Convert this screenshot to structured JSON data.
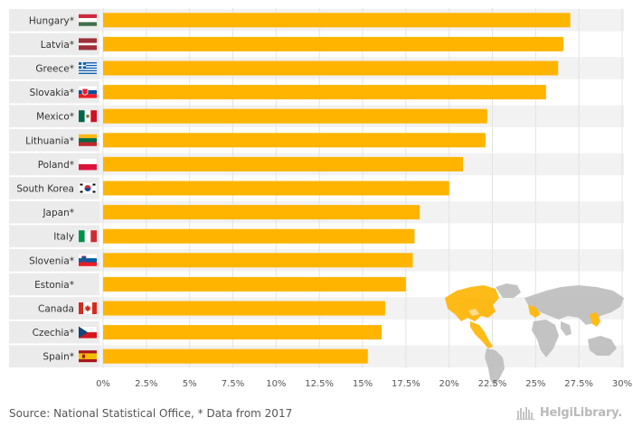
{
  "chart_data": {
    "type": "bar",
    "orientation": "horizontal",
    "categories": [
      "Hungary*",
      "Latvia*",
      "Greece*",
      "Slovakia*",
      "Mexico*",
      "Lithuania*",
      "Poland*",
      "South Korea",
      "Japan*",
      "Italy",
      "Slovenia*",
      "Estonia*",
      "Canada",
      "Czechia*",
      "Spain*"
    ],
    "values": [
      27.0,
      26.6,
      26.3,
      25.6,
      22.2,
      22.1,
      20.8,
      20.0,
      18.3,
      18.0,
      17.9,
      17.5,
      16.3,
      16.1,
      15.3
    ],
    "flags": [
      "hungary-flag",
      "latvia-flag",
      "greece-flag",
      "slovakia-flag",
      "mexico-flag",
      "lithuania-flag",
      "poland-flag",
      "south-korea-flag",
      "",
      "italy-flag",
      "slovenia-flag",
      "",
      "canada-flag",
      "czechia-flag",
      "spain-flag"
    ],
    "xlim": [
      0,
      30
    ],
    "xticks": [
      "0%",
      "2.5%",
      "5%",
      "7.5%",
      "10%",
      "12.5%",
      "15%",
      "17.5%",
      "20%",
      "22.5%",
      "25%",
      "27.5%",
      "30%"
    ],
    "bar_color": "#ffb400",
    "grid": true,
    "row_stripe_color": "#f2f2f2"
  },
  "footer": {
    "source": "Source: National Statistical Office, * Data from 2017",
    "brand": "HelgiLibrary."
  }
}
